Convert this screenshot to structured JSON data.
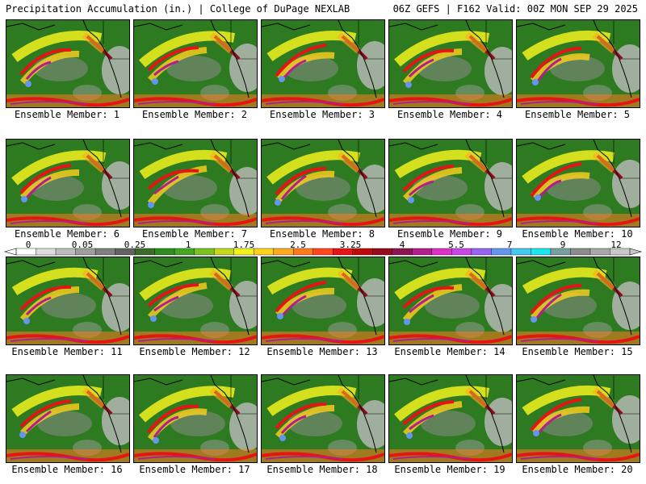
{
  "header": {
    "left": "Precipitation Accumulation (in.) | College of DuPage NEXLAB",
    "right": "06Z GEFS | F162 Valid: 00Z MON SEP 29 2025"
  },
  "panels": [
    {
      "label": "Ensemble Member: 1"
    },
    {
      "label": "Ensemble Member: 2"
    },
    {
      "label": "Ensemble Member: 3"
    },
    {
      "label": "Ensemble Member: 4"
    },
    {
      "label": "Ensemble Member: 5"
    },
    {
      "label": "Ensemble Member: 6"
    },
    {
      "label": "Ensemble Member: 7"
    },
    {
      "label": "Ensemble Member: 8"
    },
    {
      "label": "Ensemble Member: 9"
    },
    {
      "label": "Ensemble Member: 10"
    },
    {
      "label": "Ensemble Member: 11"
    },
    {
      "label": "Ensemble Member: 12"
    },
    {
      "label": "Ensemble Member: 13"
    },
    {
      "label": "Ensemble Member: 14"
    },
    {
      "label": "Ensemble Member: 15"
    },
    {
      "label": "Ensemble Member: 16"
    },
    {
      "label": "Ensemble Member: 17"
    },
    {
      "label": "Ensemble Member: 18"
    },
    {
      "label": "Ensemble Member: 19"
    },
    {
      "label": "Ensemble Member: 20"
    }
  ],
  "legend": {
    "ticks": [
      "0",
      "0.05",
      "0.25",
      "1",
      "1.75",
      "2.5",
      "3.25",
      "4",
      "5.5",
      "7",
      "9",
      "12"
    ],
    "colors": [
      "#ffffff",
      "#dcdcdc",
      "#bdbdbd",
      "#9e9e9e",
      "#808080",
      "#626262",
      "#3c6b2a",
      "#2f8c1e",
      "#44a822",
      "#7cc11e",
      "#c6d81e",
      "#f2f21e",
      "#ffd21e",
      "#ffaa1e",
      "#ff7a1e",
      "#ff461e",
      "#e61414",
      "#c00a0a",
      "#960a1e",
      "#8c1450",
      "#b41e8c",
      "#dc32c8",
      "#c846e6",
      "#9664f0",
      "#6496f0",
      "#46c8f0",
      "#1ee6f0",
      "#78a0a0",
      "#8c8c8c",
      "#a8a8a8",
      "#c8c8c8"
    ]
  }
}
